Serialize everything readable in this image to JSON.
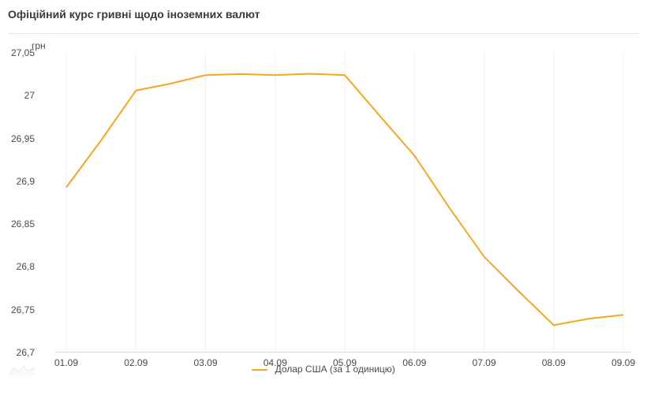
{
  "title": "Офіційний курс гривні щодо іноземних валют",
  "chart": {
    "type": "line",
    "y_unit_label": "грн",
    "ylim": [
      26.7,
      27.05
    ],
    "yticks": [
      26.7,
      26.75,
      26.8,
      26.85,
      26.9,
      26.95,
      27,
      27.05
    ],
    "ytick_labels": [
      "26,7",
      "26,75",
      "26,8",
      "26,85",
      "26,9",
      "26,95",
      "27",
      "27,05"
    ],
    "x_categories": [
      "01.09",
      "02.09",
      "03.09",
      "04.09",
      "05.09",
      "06.09",
      "07.09",
      "08.09",
      "09.09"
    ],
    "series": [
      {
        "name": "Долар США (за 1 одиницю)",
        "color": "#f5a623",
        "values": [
          26.893,
          27.006,
          27.024,
          27.024,
          27.024,
          26.93,
          26.812,
          26.732,
          26.744
        ]
      }
    ],
    "line_width": 2,
    "background_color": "#ffffff",
    "grid_color": "#f0f0f0",
    "axis_color": "#dddddd",
    "text_color": "#4a4a4a",
    "title_color": "#3a3a3a",
    "title_fontsize": 14,
    "label_fontsize": 12
  },
  "legend": {
    "label": "Долар США (за 1 одиницю)"
  }
}
